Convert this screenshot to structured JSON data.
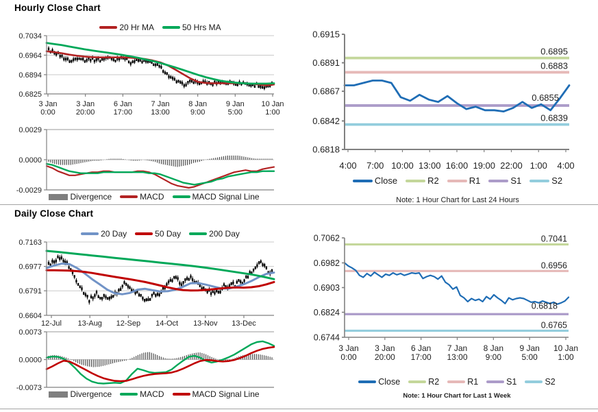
{
  "panels": {
    "hourly": {
      "title": "Hourly Close Chart",
      "price_legend": [
        {
          "label": "20 Hr MA",
          "color": "#B22222"
        },
        {
          "label": "50 Hrs MA",
          "color": "#00A859"
        }
      ],
      "macd_legend": [
        {
          "label": "Divergence",
          "color": "#7F7F7F",
          "box": true
        },
        {
          "label": "MACD",
          "color": "#B22222"
        },
        {
          "label": "MACD Signal Line",
          "color": "#00A859"
        }
      ]
    },
    "hourly_pivot": {
      "legend": [
        {
          "label": "Close",
          "color": "#1F6DB5"
        },
        {
          "label": "R2",
          "color": "#C4D79B"
        },
        {
          "label": "R1",
          "color": "#E6B9B8"
        },
        {
          "label": "S1",
          "color": "#AC9CC9"
        },
        {
          "label": "S2",
          "color": "#93CDDD"
        }
      ],
      "note": "Note: 1 Hour Chart for Last 24 Hours"
    },
    "daily": {
      "title": "Daily Close Chart",
      "price_legend": [
        {
          "label": "20 Day",
          "color": "#7193C7"
        },
        {
          "label": "50 Day",
          "color": "#C00000"
        },
        {
          "label": "200 Day",
          "color": "#00A859"
        }
      ],
      "macd_legend": [
        {
          "label": "Divergence",
          "color": "#7F7F7F",
          "box": true
        },
        {
          "label": "MACD",
          "color": "#00A859"
        },
        {
          "label": "MACD Signal Line",
          "color": "#C00000"
        }
      ]
    },
    "daily_pivot": {
      "legend": [
        {
          "label": "Close",
          "color": "#1F6DB5"
        },
        {
          "label": "R2",
          "color": "#C4D79B"
        },
        {
          "label": "R1",
          "color": "#E6B9B8"
        },
        {
          "label": "S1",
          "color": "#AC9CC9"
        },
        {
          "label": "S2",
          "color": "#93CDDD"
        }
      ],
      "note": "Note: 1 Hour Chart for Last 1 Week"
    }
  },
  "chart_data": [
    {
      "id": "hourly_price",
      "type": "candlestick",
      "title": "Hourly Close Chart",
      "ylim": [
        0.6825,
        0.7034
      ],
      "ytick_vals": [
        0.7034,
        0.6964,
        0.6894,
        0.6825
      ],
      "ytick_labels": [
        "0.7034",
        "0.6964",
        "0.6894",
        "0.6825"
      ],
      "grid": [
        0.7034,
        0.6964,
        0.6894
      ],
      "xlabels": [
        [
          "3 Jan",
          "0:00"
        ],
        [
          "3 Jan",
          "20:00"
        ],
        [
          "6 Jan",
          "17:00"
        ],
        [
          "7 Jan",
          "13:00"
        ],
        [
          "8 Jan",
          "9:00"
        ],
        [
          "9 Jan",
          "5:00"
        ],
        [
          "10 Jan",
          "1:00"
        ]
      ],
      "candles": [
        0.6982,
        0.6978,
        0.6972,
        0.6964,
        0.6955,
        0.6948,
        0.6941,
        0.695,
        0.6957,
        0.695,
        0.6945,
        0.6952,
        0.6947,
        0.695,
        0.6945,
        0.6953,
        0.6956,
        0.695,
        0.6946,
        0.6955,
        0.6958,
        0.6948,
        0.6938,
        0.6942,
        0.6945,
        0.6943,
        0.6941,
        0.6938,
        0.6935,
        0.6928,
        0.692,
        0.6908,
        0.6893,
        0.688,
        0.6872,
        0.6866,
        0.6858,
        0.6862,
        0.6868,
        0.687,
        0.6866,
        0.6862,
        0.6867,
        0.6864,
        0.686,
        0.6866,
        0.6869,
        0.6866,
        0.6863,
        0.6867,
        0.6864,
        0.6861,
        0.6865,
        0.6862,
        0.6858,
        0.6855,
        0.6858,
        0.6852,
        0.6848,
        0.685,
        0.686
      ],
      "series": [
        {
          "key": "ma20",
          "name": "20 Hr MA",
          "color": "#B22222",
          "values": [
            0.6978,
            0.6975,
            0.6971,
            0.6966,
            0.6962,
            0.6959,
            0.6957,
            0.6956,
            0.6956,
            0.6956,
            0.6956,
            0.6955,
            0.6953,
            0.695,
            0.6945,
            0.6938,
            0.6927,
            0.6912,
            0.6896,
            0.688,
            0.6868,
            0.6864,
            0.6863,
            0.6863,
            0.6863,
            0.6863,
            0.6863,
            0.6862,
            0.6859,
            0.6856,
            0.6859
          ]
        },
        {
          "key": "ma50",
          "name": "50 Hrs MA",
          "color": "#00A859",
          "values": [
            0.7008,
            0.7004,
            0.7,
            0.6995,
            0.699,
            0.6985,
            0.6981,
            0.6977,
            0.6973,
            0.6969,
            0.6965,
            0.696,
            0.6955,
            0.6949,
            0.6943,
            0.6936,
            0.6928,
            0.692,
            0.6911,
            0.6902,
            0.6893,
            0.6885,
            0.6878,
            0.6872,
            0.6868,
            0.6865,
            0.6863,
            0.6862,
            0.6862,
            0.6862,
            0.6863
          ]
        }
      ]
    },
    {
      "id": "hourly_macd",
      "type": "macd",
      "ylim": [
        -0.0029,
        0.0029
      ],
      "ytick_vals": [
        0.0029,
        0,
        -0.0029
      ],
      "ytick_labels": [
        "0.0029",
        "0.0000",
        "-0.0029"
      ],
      "div_color": "#4D4D4D",
      "div": [
        -0.0002,
        -0.0004,
        -0.0005,
        -0.0005,
        -0.0005,
        -0.0004,
        -0.0003,
        -0.0002,
        -0.0001,
        -0.0001,
        0,
        0.0001,
        0.0001,
        0.0001,
        0,
        -0.0001,
        -0.0001,
        0,
        -0.0001,
        -0.0002,
        -0.0004,
        -0.0005,
        -0.0006,
        -0.0007,
        -0.0006,
        -0.0005,
        -0.0003,
        -0.0002,
        0,
        0.0001,
        0.0002,
        0.0003,
        0.0004,
        0.0004,
        0.0004,
        0.0003,
        0.0002,
        0.0001,
        0.0001,
        0.0001,
        0.0001
      ],
      "series": [
        {
          "key": "macd",
          "name": "MACD",
          "color": "#B22222",
          "values": [
            -0.0006,
            -0.0008,
            -0.0011,
            -0.0013,
            -0.0015,
            -0.0015,
            -0.0014,
            -0.0013,
            -0.0012,
            -0.0012,
            -0.0011,
            -0.0011,
            -0.0012,
            -0.0012,
            -0.0012,
            -0.0012,
            -0.0011,
            -0.0011,
            -0.0012,
            -0.0014,
            -0.0017,
            -0.002,
            -0.0023,
            -0.0025,
            -0.0026,
            -0.0027,
            -0.0026,
            -0.0024,
            -0.0022,
            -0.002,
            -0.0018,
            -0.0016,
            -0.0014,
            -0.0012,
            -0.0011,
            -0.001,
            -0.0011,
            -0.0011,
            -0.0009,
            -0.0008,
            -0.0007
          ]
        },
        {
          "key": "signal",
          "name": "MACD Signal Line",
          "color": "#00A859",
          "values": [
            -0.0004,
            -0.0005,
            -0.0007,
            -0.0009,
            -0.0011,
            -0.0012,
            -0.0013,
            -0.0013,
            -0.0013,
            -0.0013,
            -0.0012,
            -0.0012,
            -0.0012,
            -0.0012,
            -0.0012,
            -0.0012,
            -0.0012,
            -0.0012,
            -0.0013,
            -0.0013,
            -0.0014,
            -0.0016,
            -0.0018,
            -0.002,
            -0.0022,
            -0.0023,
            -0.0024,
            -0.0023,
            -0.0022,
            -0.0021,
            -0.0019,
            -0.0018,
            -0.0016,
            -0.0015,
            -0.0014,
            -0.0013,
            -0.0012,
            -0.0012,
            -0.0011,
            -0.0011,
            -0.0011
          ]
        }
      ]
    },
    {
      "id": "hourly_pivot",
      "type": "line",
      "note": "Note: 1 Hour Chart for Last 24 Hours",
      "ylim": [
        0.6818,
        0.6915
      ],
      "ytick_vals": [
        0.6915,
        0.6891,
        0.6867,
        0.6842,
        0.6818
      ],
      "ytick_labels": [
        "0.6915",
        "0.6891",
        "0.6867",
        "0.6842",
        "0.6818"
      ],
      "xlabels": [
        "4:00",
        "7:00",
        "10:00",
        "13:00",
        "16:00",
        "19:00",
        "22:00",
        "1:00",
        "4:00"
      ],
      "pivots": [
        {
          "name": "R2",
          "value": 0.6895,
          "label": "0.6895",
          "color": "#C4D79B"
        },
        {
          "name": "R1",
          "value": 0.6883,
          "label": "0.6883",
          "color": "#E6B9B8"
        },
        {
          "name": "S1",
          "value": 0.6855,
          "label": "0.6855",
          "color": "#AC9CC9"
        },
        {
          "name": "S2",
          "value": 0.6839,
          "label": "0.6839",
          "color": "#93CDDD"
        }
      ],
      "series": [
        {
          "key": "close",
          "name": "Close",
          "color": "#1F6DB5",
          "values": [
            0.6872,
            0.6872,
            0.6874,
            0.6876,
            0.6876,
            0.6874,
            0.6862,
            0.6859,
            0.6864,
            0.686,
            0.6858,
            0.6863,
            0.6857,
            0.6852,
            0.6854,
            0.6851,
            0.6851,
            0.685,
            0.6853,
            0.6858,
            0.6853,
            0.6856,
            0.6851,
            0.6861,
            0.6872
          ]
        }
      ]
    },
    {
      "id": "daily_price",
      "type": "candlestick",
      "title": "Daily Close Chart",
      "ylim": [
        0.6604,
        0.7163
      ],
      "ytick_vals": [
        0.7163,
        0.6977,
        0.6791,
        0.6604
      ],
      "ytick_labels": [
        "0.7163",
        "0.6977",
        "0.6791",
        "0.6604"
      ],
      "grid": [
        0.7163,
        0.6977,
        0.6791
      ],
      "xlabels": [
        "12-Jul",
        "13-Aug",
        "12-Sep",
        "14-Oct",
        "13-Nov",
        "13-Dec"
      ],
      "candles": [
        0.699,
        0.7008,
        0.703,
        0.7045,
        0.7028,
        0.6995,
        0.695,
        0.6898,
        0.6848,
        0.68,
        0.6762,
        0.6718,
        0.6752,
        0.6772,
        0.6728,
        0.6758,
        0.6722,
        0.6748,
        0.6775,
        0.6802,
        0.6838,
        0.685,
        0.6808,
        0.6772,
        0.678,
        0.674,
        0.6708,
        0.6722,
        0.6768,
        0.6745,
        0.6782,
        0.6812,
        0.6842,
        0.6868,
        0.6888,
        0.6865,
        0.6842,
        0.6875,
        0.6898,
        0.6866,
        0.684,
        0.6818,
        0.68,
        0.6786,
        0.6776,
        0.679,
        0.678,
        0.6832,
        0.6815,
        0.6858,
        0.683,
        0.6872,
        0.685,
        0.6888,
        0.6922,
        0.6952,
        0.6986,
        0.7005,
        0.6978,
        0.693,
        0.6938
      ],
      "series": [
        {
          "key": "ma20",
          "name": "20 Day",
          "color": "#7193C7",
          "values": [
            0.6965,
            0.6984,
            0.6998,
            0.6995,
            0.6965,
            0.6925,
            0.688,
            0.684,
            0.68,
            0.6772,
            0.6765,
            0.6775,
            0.68,
            0.6806,
            0.6795,
            0.6786,
            0.6788,
            0.68,
            0.6822,
            0.6848,
            0.685,
            0.6838,
            0.6824,
            0.681,
            0.6808,
            0.6822,
            0.684,
            0.6865,
            0.6895,
            0.692,
            0.693
          ]
        },
        {
          "key": "ma50",
          "name": "50 Day",
          "color": "#C00000",
          "values": [
            0.6948,
            0.6947,
            0.6946,
            0.6945,
            0.6941,
            0.6935,
            0.6927,
            0.6917,
            0.6907,
            0.6897,
            0.6888,
            0.6879,
            0.6869,
            0.6858,
            0.6845,
            0.6831,
            0.6817,
            0.6805,
            0.6797,
            0.6793,
            0.6794,
            0.6798,
            0.6803,
            0.6809,
            0.6814,
            0.6817,
            0.6815,
            0.6818,
            0.6826,
            0.684,
            0.6858
          ]
        },
        {
          "key": "ma200",
          "name": "200 Day",
          "color": "#00A859",
          "values": [
            0.7095,
            0.7087,
            0.7078,
            0.7069,
            0.706,
            0.7051,
            0.7042,
            0.7033,
            0.7024,
            0.7015,
            0.7006,
            0.6997,
            0.6988,
            0.6978,
            0.6967,
            0.6955,
            0.6942,
            0.6929,
            0.6916,
            0.6899,
            0.688
          ]
        }
      ]
    },
    {
      "id": "daily_macd",
      "type": "macd",
      "ylim": [
        -0.0073,
        0.0073
      ],
      "ytick_vals": [
        0.0073,
        0,
        -0.0073
      ],
      "ytick_labels": [
        "0.0073",
        "0.0000",
        "-0.0073"
      ],
      "div_color": "#4D4D4D",
      "div": [
        0.001,
        0.0012,
        0.001,
        0.0006,
        0,
        -0.0008,
        -0.0014,
        -0.0018,
        -0.002,
        -0.0019,
        -0.0016,
        -0.0012,
        -0.0008,
        -0.0005,
        -0.0002,
        0.0005,
        0.0012,
        0.0018,
        0.002,
        0.0015,
        0.0008,
        0.0003,
        0.0002,
        0.0004,
        0.0008,
        0.0013,
        0.0017,
        0.0019,
        0.0015,
        0.0008,
        0.0002,
        -0.0003,
        -0.0004,
        0.0002,
        0.0008,
        0.0012,
        0.0014,
        0.0015,
        0.0013,
        0.001,
        0.0006
      ],
      "series": [
        {
          "key": "macd",
          "name": "MACD",
          "color": "#00A859",
          "values": [
            0.0005,
            0.0008,
            0.0007,
            0.0002,
            -0.0008,
            -0.0022,
            -0.0038,
            -0.005,
            -0.0058,
            -0.0062,
            -0.0063,
            -0.0062,
            -0.0061,
            -0.0062,
            -0.0055,
            -0.0038,
            -0.0024,
            -0.0028,
            -0.0033,
            -0.0035,
            -0.0034,
            -0.0033,
            -0.0026,
            -0.0014,
            -0.0003,
            0.0007,
            0.001,
            0.0005,
            -0.0003,
            -0.0008,
            -0.0005,
            0,
            0.0006,
            0.0013,
            0.0022,
            0.0031,
            0.004,
            0.0046,
            0.0048,
            0.0043,
            0.0036
          ]
        },
        {
          "key": "signal",
          "name": "MACD Signal Line",
          "color": "#C00000",
          "values": [
            -0.0025,
            -0.0018,
            -0.001,
            -0.0003,
            -0.0005,
            -0.0012,
            -0.002,
            -0.0028,
            -0.0036,
            -0.0043,
            -0.0049,
            -0.0053,
            -0.0056,
            -0.0057,
            -0.0056,
            -0.0052,
            -0.0047,
            -0.0043,
            -0.004,
            -0.0038,
            -0.0037,
            -0.0036,
            -0.0034,
            -0.003,
            -0.0024,
            -0.0017,
            -0.001,
            -0.0004,
            -0.0001,
            -0.0002,
            -0.0004,
            -0.0005,
            -0.0004,
            -0.0001,
            0.0004,
            0.001,
            0.0017,
            0.0023,
            0.0028,
            0.0031,
            0.0033
          ]
        }
      ]
    },
    {
      "id": "daily_pivot",
      "type": "line",
      "note": "Note: 1 Hour Chart for Last 1 Week",
      "ylim": [
        0.6744,
        0.7062
      ],
      "ytick_vals": [
        0.7062,
        0.6982,
        0.6903,
        0.6824,
        0.6744
      ],
      "ytick_labels": [
        "0.7062",
        "0.6982",
        "0.6903",
        "0.6824",
        "0.6744"
      ],
      "xlabels": [
        [
          "3 Jan",
          "0:00"
        ],
        [
          "3 Jan",
          "20:00"
        ],
        [
          "6 Jan",
          "17:00"
        ],
        [
          "7 Jan",
          "13:00"
        ],
        [
          "8 Jan",
          "9:00"
        ],
        [
          "9 Jan",
          "5:00"
        ],
        [
          "10 Jan",
          "1:00"
        ]
      ],
      "pivots": [
        {
          "name": "R2",
          "value": 0.7041,
          "label": "0.7041",
          "color": "#C4D79B"
        },
        {
          "name": "R1",
          "value": 0.6956,
          "label": "0.6956",
          "color": "#E6B9B8"
        },
        {
          "name": "S1",
          "value": 0.6818,
          "label": "0.6818",
          "color": "#AC9CC9"
        },
        {
          "name": "S2",
          "value": 0.6765,
          "label": "0.6765",
          "color": "#93CDDD"
        }
      ],
      "series": [
        {
          "key": "close",
          "name": "Close",
          "color": "#1F6DB5",
          "values": [
            0.6982,
            0.6972,
            0.6966,
            0.6958,
            0.6942,
            0.6936,
            0.6948,
            0.694,
            0.6952,
            0.6944,
            0.6936,
            0.6946,
            0.6942,
            0.695,
            0.6944,
            0.6948,
            0.6942,
            0.6946,
            0.695,
            0.6948,
            0.695,
            0.6932,
            0.6938,
            0.6942,
            0.6938,
            0.693,
            0.694,
            0.692,
            0.6912,
            0.6898,
            0.6905,
            0.6878,
            0.687,
            0.6858,
            0.6868,
            0.6862,
            0.6866,
            0.6858,
            0.6874,
            0.6866,
            0.688,
            0.687,
            0.6862,
            0.6852,
            0.687,
            0.6864,
            0.6868,
            0.687,
            0.6868,
            0.6862,
            0.6856,
            0.6858,
            0.6854,
            0.686,
            0.6856,
            0.6852,
            0.6856,
            0.685,
            0.6854,
            0.686,
            0.6872
          ]
        }
      ]
    }
  ]
}
